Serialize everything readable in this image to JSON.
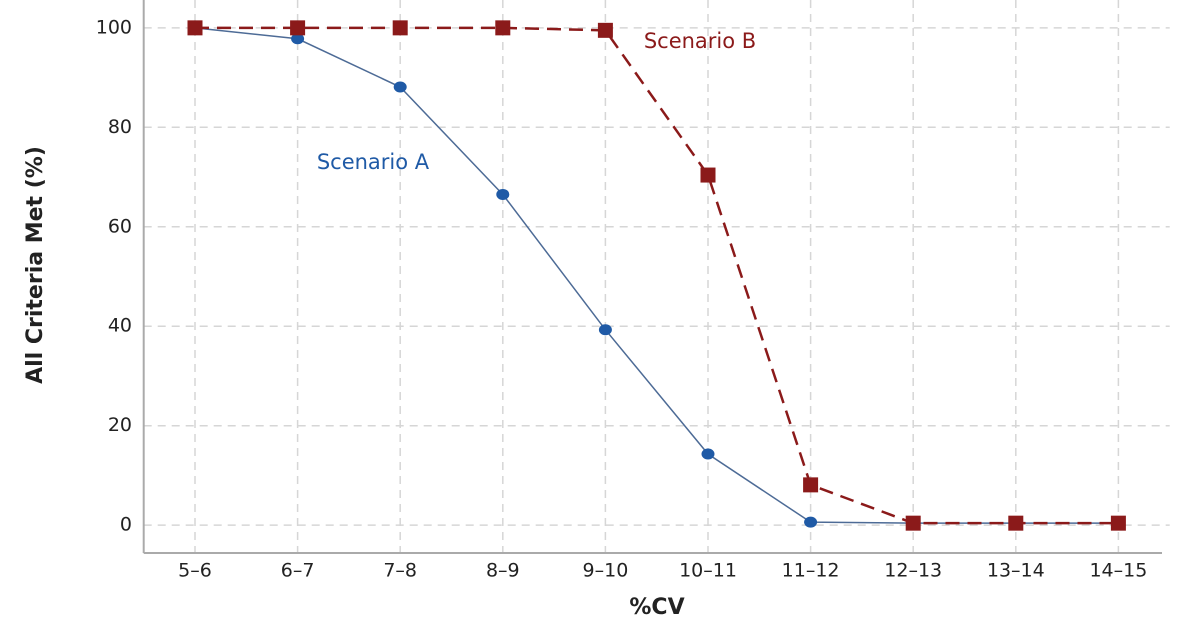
{
  "chart_data": {
    "type": "line",
    "y_label": "All Criteria Met (%)",
    "x_label": "%CV",
    "categories": [
      "5–6",
      "6–7",
      "7–8",
      "8–9",
      "9–10",
      "10–11",
      "11–12",
      "12–13",
      "13–14",
      "14–15"
    ],
    "series": [
      {
        "name": "Scenario A",
        "color": "#1f5aa6",
        "line_color": "#4d6b96",
        "marker": "circle",
        "dashed": false,
        "values": [
          100,
          97.8,
          88.1,
          66.5,
          39.3,
          14.3,
          0.6,
          0.4,
          0.4,
          0.4
        ]
      },
      {
        "name": "Scenario B",
        "color": "#8b1a1a",
        "line_color": "#8b1a1a",
        "marker": "square",
        "dashed": true,
        "values": [
          100,
          100,
          100,
          100,
          99.5,
          70.4,
          8.1,
          0.4,
          0.4,
          0.4
        ]
      }
    ],
    "ylim": [
      -5.6,
      105.6
    ],
    "yticks": [
      0,
      20,
      40,
      60,
      80,
      100
    ],
    "grid": true
  }
}
